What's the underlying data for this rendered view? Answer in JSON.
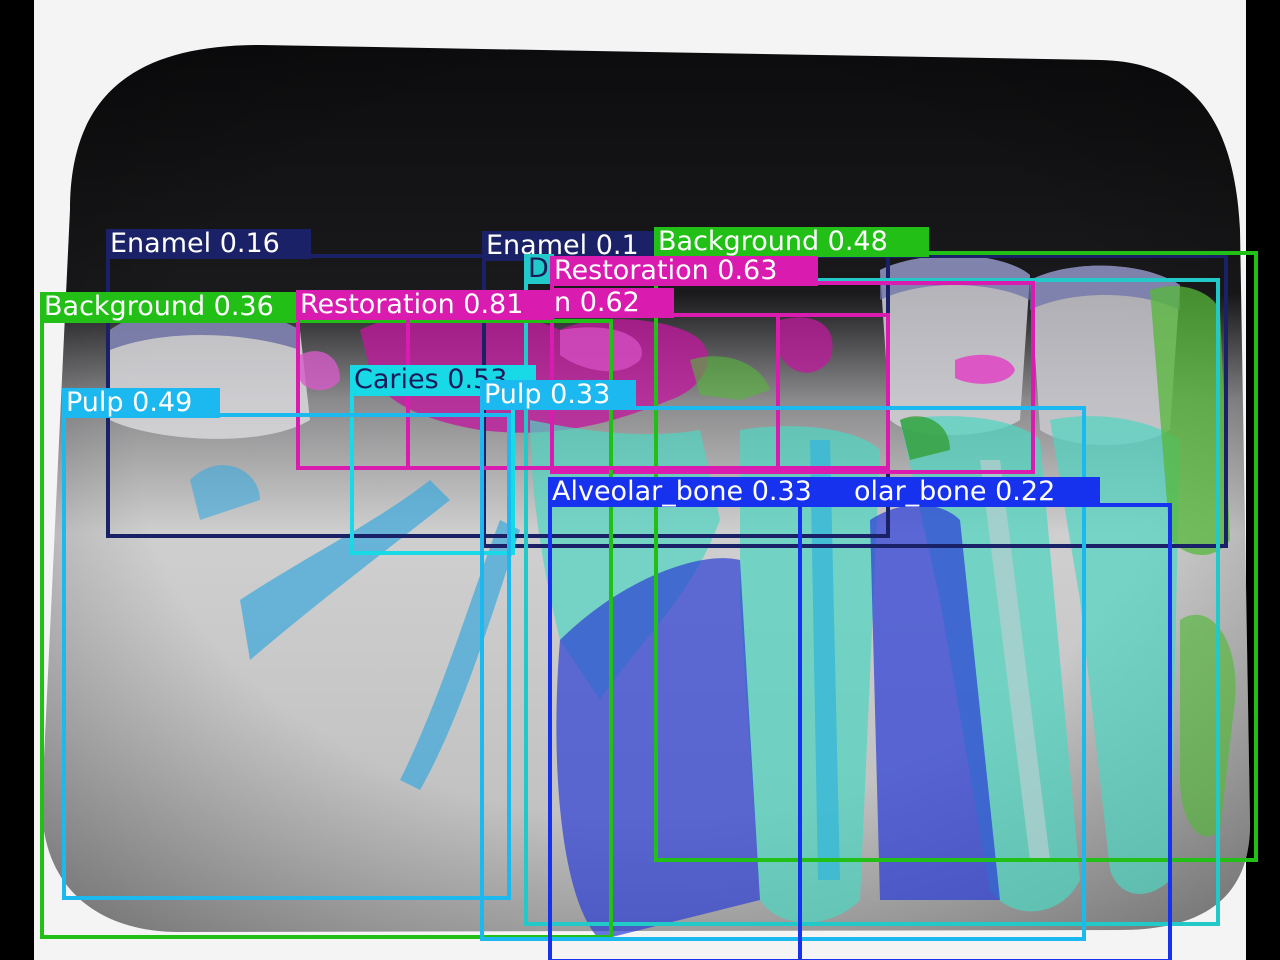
{
  "detections": [
    {
      "label": "Enamel 0.16",
      "color": "#1a2166",
      "text_color": "#ffffff"
    },
    {
      "label": "Enamel 0.1",
      "color": "#1a2166",
      "text_color": "#ffffff"
    },
    {
      "label": "Background 0.48",
      "color": "#22c016",
      "text_color": "#ffffff"
    },
    {
      "label": "D",
      "color": "#21c9c9",
      "text_color": "#1a1a5a"
    },
    {
      "label": "Restoration 0.63",
      "color": "#d91bb0",
      "text_color": "#ffffff"
    },
    {
      "label": "Background 0.36",
      "color": "#22c016",
      "text_color": "#ffffff"
    },
    {
      "label": "Restoration 0.81",
      "color": "#d91bb0",
      "text_color": "#ffffff"
    },
    {
      "label": "n 0.62",
      "color": "#d91bb0",
      "text_color": "#ffffff"
    },
    {
      "label": "Caries 0.53",
      "color": "#18d9e6",
      "text_color": "#1a1a5a"
    },
    {
      "label": "Pulp 0.49",
      "color": "#1cb8f0",
      "text_color": "#ffffff"
    },
    {
      "label": "Pulp 0.33",
      "color": "#1cb8f0",
      "text_color": "#ffffff"
    },
    {
      "label": "Alveolar_bone 0.33",
      "color": "#1632ee",
      "text_color": "#ffffff"
    },
    {
      "label": "olar_bone 0.22",
      "color": "#1632ee",
      "text_color": "#ffffff"
    }
  ]
}
